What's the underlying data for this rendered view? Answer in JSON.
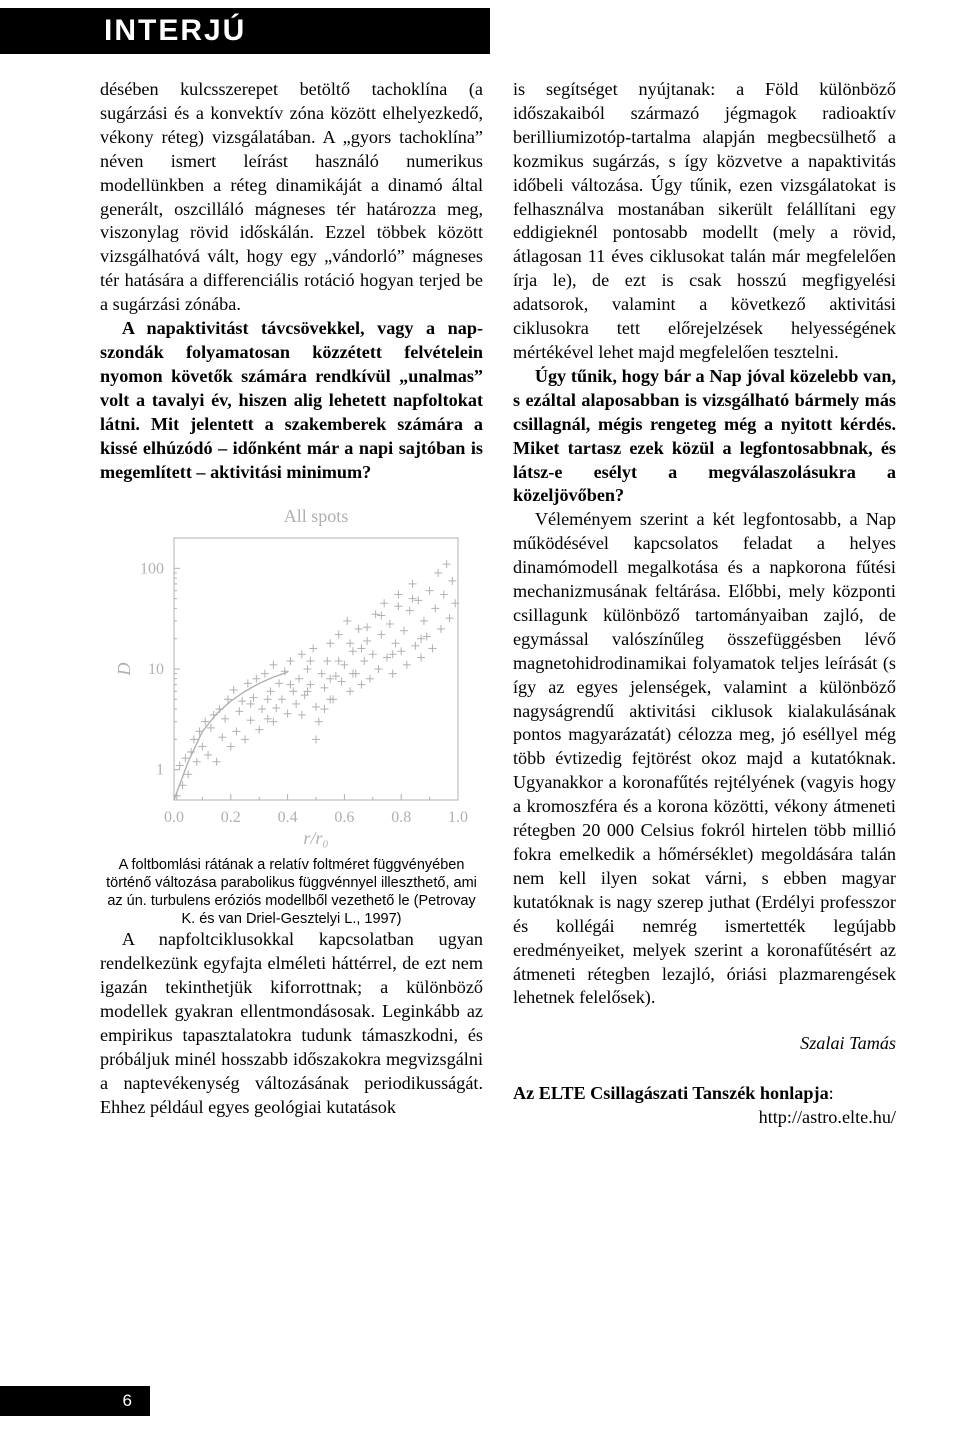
{
  "header": {
    "section_label": "INTERJÚ"
  },
  "left_column": {
    "para1": "désében kulcsszerepet betöltő tachoklína (a sugárzási és a konvektív zóna között elhelyezkedő, vékony réteg) vizsgálatában. A „gyors tachoklína” néven ismert leírást használó numerikus modellünkben a réteg dinamikáját a dinamó által generált, oszcil­láló mágneses tér határozza meg, viszonylag rövid időskálán. Ezzel többek között vizsgál­hatóvá vált, hogy egy „vándorló” mágneses tér hatására a differenciális rotáció hogyan terjed be a sugárzási zónába.",
    "para2_bold": "A napaktivitást távcsövekkel, vagy a nap­szondák folyamatosan közzétett felvételein nyomon követők számára rendkívül „unal­mas” volt a tavalyi év, hiszen alig lehetett napfoltokat látni. Mit jelentett a szakem­berek számára a kissé elhúzódó – időnként már a napi sajtóban is megemlített – aktivi­tási minimum?",
    "caption": "A foltbomlási rátának a relatív foltméret függvényében történő változása parabolikus függvénnyel illeszthető, ami az ún. turbulens eróziós modellből vezethető le (Petrovay K. és van Driel-Gesztelyi L., 1997)",
    "para3": "A napfoltciklusokkal kapcsolatban ugyan rendelkezünk egyfajta elméleti háttérrel, de ezt nem igazán tekinthetjük kiforrottnak; a különböző modellek gyakran ellentmon­dásosak. Leginkább az empirikus tapaszta­latokra tudunk támaszkodni, és próbáljuk minél hosszabb időszakokra megvizsgálni a naptevékenység változásának periodikussá­gát. Ehhez például egyes geológiai kutatások"
  },
  "right_column": {
    "para1": "is segítséget nyújtanak: a Föld különböző időszakaiból származó jégmagok radioaktív berilliumizotóp-tartalma alapján megbecsül­hető a kozmikus sugárzás, s így közvetve a napaktivitás időbeli változása. Úgy tűnik, ezen vizsgálatokat is felhasználva mosta­nában sikerült felállítani egy eddigieknél pontosabb modellt (mely a rövid, átlagosan 11 éves ciklusokat talán már megfelelően írja le), de ezt is csak hosszú megfigyelési adatsorok, valamint a következő aktivitási ciklusokra tett előrejelzések helyességének mértékével lehet majd megfelelően tesztelni.",
    "para2_bold": "Úgy tűnik, hogy bár a Nap jóval közelebb van, s ezáltal alaposabban is vizsgálha­tó bármely más csillagnál, mégis rengeteg még a nyitott kérdés. Miket tartasz ezek közül a legfontosabbnak, és látsz-e esélyt a megválaszolásukra a közeljövőben?",
    "para3": "Véleményem szerint a két legfontosabb, a Nap működésével kapcsolatos feladat a helyes dinamómodell megalkotása és a nap­korona fűtési mechanizmusának feltárása. Előbbi, mely központi csillagunk különböző tartományaiban zajló, de egymással valószí­nűleg összefüggésben lévő magnetohidro­dinamikai folyamatok teljes leírását (s így az egyes jelenségek, valamint a különböző nagyságrendű aktivitási ciklusok kialaku­lásának pontos magyarázatát) célozza meg, jó eséllyel még több évtizedig fejtörést okoz majd a kutatóknak. Ugyanakkor a korona­fűtés rejtélyének (vagyis hogy a kromosz­féra és a korona közötti, vékony átmeneti rétegben 20 000 Celsius fokról hirtelen több millió fokra emelkedik a hőmérséklet) meg­oldására talán nem kell ilyen sokat várni, s ebben magyar kutatóknak is nagy szerep juthat (Erdélyi professzor és kollégái nemrég ismertették legújabb eredményeiket, melyek szerint a koronafűtésért az átmeneti réteg­ben lezajló, óriási plazmarengések lehetnek felelősek).",
    "author": "Szalai Tamás",
    "link_label": "Az ELTE Csillagászati Tanszék honlapja",
    "link_url": "http://astro.elte.hu/"
  },
  "chart": {
    "type": "scatter",
    "title": "All spots",
    "title_fontsize": 18,
    "title_color": "#b0b0b0",
    "xlabel": "r/r₀",
    "ylabel": "D",
    "label_fontsize": 18,
    "label_font_style": "italic",
    "xlim": [
      0.0,
      1.0
    ],
    "xticks": [
      0.0,
      0.2,
      0.4,
      0.6,
      0.8,
      1.0
    ],
    "ylim_log": [
      0.5,
      200
    ],
    "yticks": [
      1,
      10,
      100
    ],
    "yticklabels": [
      "1",
      "10",
      "100"
    ],
    "axis_color": "#b0b0b0",
    "tick_color": "#b0b0b0",
    "tick_fontsize": 16,
    "marker": "+",
    "marker_size": 8,
    "marker_color": "#b0b0b0",
    "fit_line_color": "#b0b0b0",
    "fit_line_width": 1.4,
    "background_color": "#ffffff",
    "fit_curve": [
      [
        0.0,
        0.5
      ],
      [
        0.05,
        1.2
      ],
      [
        0.1,
        2.4
      ],
      [
        0.15,
        3.6
      ],
      [
        0.2,
        4.8
      ],
      [
        0.25,
        6.0
      ],
      [
        0.3,
        7.2
      ],
      [
        0.35,
        8.3
      ],
      [
        0.4,
        9.3
      ]
    ],
    "points": [
      [
        0.01,
        0.55
      ],
      [
        0.02,
        1.1
      ],
      [
        0.03,
        0.7
      ],
      [
        0.04,
        1.3
      ],
      [
        0.05,
        0.9
      ],
      [
        0.06,
        1.5
      ],
      [
        0.07,
        2.0
      ],
      [
        0.08,
        1.2
      ],
      [
        0.09,
        2.4
      ],
      [
        0.1,
        1.7
      ],
      [
        0.11,
        3.0
      ],
      [
        0.12,
        1.4
      ],
      [
        0.13,
        2.6
      ],
      [
        0.14,
        3.5
      ],
      [
        0.15,
        1.2
      ],
      [
        0.16,
        4.0
      ],
      [
        0.17,
        2.1
      ],
      [
        0.18,
        3.2
      ],
      [
        0.19,
        5.0
      ],
      [
        0.2,
        1.7
      ],
      [
        0.21,
        6.2
      ],
      [
        0.22,
        2.4
      ],
      [
        0.23,
        3.8
      ],
      [
        0.24,
        4.8
      ],
      [
        0.25,
        2.0
      ],
      [
        0.26,
        7.2
      ],
      [
        0.27,
        3.1
      ],
      [
        0.28,
        5.2
      ],
      [
        0.29,
        8.0
      ],
      [
        0.3,
        2.5
      ],
      [
        0.31,
        4.0
      ],
      [
        0.32,
        9.0
      ],
      [
        0.33,
        3.2
      ],
      [
        0.34,
        6.0
      ],
      [
        0.35,
        11.0
      ],
      [
        0.36,
        4.1
      ],
      [
        0.37,
        7.2
      ],
      [
        0.38,
        5.0
      ],
      [
        0.39,
        9.5
      ],
      [
        0.4,
        3.6
      ],
      [
        0.41,
        12.0
      ],
      [
        0.42,
        6.0
      ],
      [
        0.43,
        4.5
      ],
      [
        0.44,
        8.0
      ],
      [
        0.45,
        14.0
      ],
      [
        0.46,
        5.5
      ],
      [
        0.47,
        10.0
      ],
      [
        0.48,
        7.0
      ],
      [
        0.49,
        16.0
      ],
      [
        0.5,
        4.2
      ],
      [
        0.5,
        2.0
      ],
      [
        0.51,
        3.0
      ],
      [
        0.52,
        9.0
      ],
      [
        0.53,
        6.5
      ],
      [
        0.54,
        12.0
      ],
      [
        0.55,
        18.0
      ],
      [
        0.56,
        5.0
      ],
      [
        0.57,
        8.5
      ],
      [
        0.58,
        22.0
      ],
      [
        0.59,
        7.5
      ],
      [
        0.6,
        11.0
      ],
      [
        0.61,
        30.0
      ],
      [
        0.62,
        6.0
      ],
      [
        0.63,
        15.0
      ],
      [
        0.64,
        9.0
      ],
      [
        0.65,
        25.0
      ],
      [
        0.66,
        7.0
      ],
      [
        0.67,
        12.0
      ],
      [
        0.68,
        19.0
      ],
      [
        0.69,
        8.0
      ],
      [
        0.7,
        14.0
      ],
      [
        0.71,
        35.0
      ],
      [
        0.72,
        10.0
      ],
      [
        0.73,
        22.0
      ],
      [
        0.74,
        45.0
      ],
      [
        0.75,
        13.0
      ],
      [
        0.76,
        28.0
      ],
      [
        0.77,
        9.0
      ],
      [
        0.78,
        18.0
      ],
      [
        0.79,
        55.0
      ],
      [
        0.8,
        15.0
      ],
      [
        0.81,
        24.0
      ],
      [
        0.82,
        11.0
      ],
      [
        0.83,
        38.0
      ],
      [
        0.84,
        70.0
      ],
      [
        0.85,
        17.0
      ],
      [
        0.86,
        48.0
      ],
      [
        0.87,
        13.0
      ],
      [
        0.88,
        30.0
      ],
      [
        0.89,
        21.0
      ],
      [
        0.9,
        60.0
      ],
      [
        0.91,
        16.0
      ],
      [
        0.92,
        40.0
      ],
      [
        0.93,
        90.0
      ],
      [
        0.94,
        25.0
      ],
      [
        0.95,
        55.0
      ],
      [
        0.96,
        110.0
      ],
      [
        0.97,
        32.0
      ],
      [
        0.98,
        75.0
      ],
      [
        0.99,
        45.0
      ],
      [
        0.27,
        4.5
      ],
      [
        0.33,
        5.0
      ],
      [
        0.41,
        7.0
      ],
      [
        0.47,
        6.0
      ],
      [
        0.55,
        8.0
      ],
      [
        0.58,
        12.0
      ],
      [
        0.62,
        18.0
      ],
      [
        0.68,
        26.0
      ],
      [
        0.73,
        34.0
      ],
      [
        0.79,
        42.0
      ],
      [
        0.84,
        50.0
      ],
      [
        0.53,
        4.0
      ],
      [
        0.63,
        9.0
      ],
      [
        0.77,
        14.0
      ],
      [
        0.87,
        20.0
      ],
      [
        0.35,
        3.0
      ],
      [
        0.45,
        3.5
      ],
      [
        0.55,
        5.0
      ],
      [
        0.48,
        12.0
      ],
      [
        0.66,
        16.0
      ]
    ]
  },
  "page_number": "6"
}
